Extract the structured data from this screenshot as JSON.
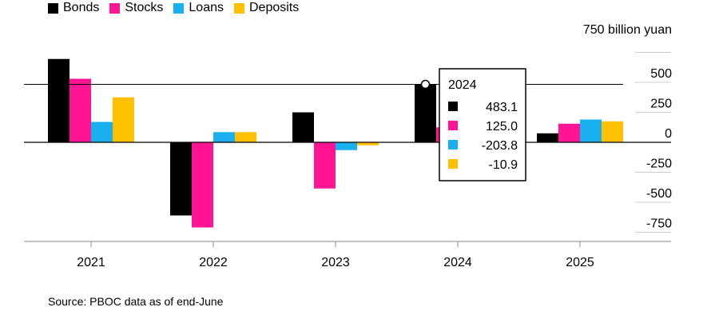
{
  "chart_data": {
    "type": "bar",
    "categories": [
      "2021",
      "2022",
      "2023",
      "2024",
      "2025"
    ],
    "series": [
      {
        "name": "Bonds",
        "color": "#000000",
        "values": [
          695,
          -610,
          250,
          483.1,
          75
        ]
      },
      {
        "name": "Stocks",
        "color": "#ff1493",
        "values": [
          530,
          -710,
          -385,
          125.0,
          155
        ]
      },
      {
        "name": "Loans",
        "color": "#1ab0f0",
        "values": [
          170,
          85,
          -65,
          -203.8,
          190
        ]
      },
      {
        "name": "Deposits",
        "color": "#ffc000",
        "values": [
          375,
          85,
          -25,
          -10.9,
          175
        ]
      }
    ],
    "unit_label": "750 billion yuan",
    "y_ticks": [
      {
        "value": 750,
        "label": ""
      },
      {
        "value": 500,
        "label": "500"
      },
      {
        "value": 250,
        "label": "250"
      },
      {
        "value": 0,
        "label": "0"
      },
      {
        "value": -250,
        "label": "-250"
      },
      {
        "value": -500,
        "label": "-500"
      },
      {
        "value": -750,
        "label": "-750"
      }
    ],
    "ylim": [
      -750,
      750
    ],
    "reference_line_value": 483.1,
    "tooltip": {
      "title": "2024",
      "rows": [
        {
          "color": "#000000",
          "value": "483.1"
        },
        {
          "color": "#ff1493",
          "value": "125.0"
        },
        {
          "color": "#1ab0f0",
          "value": "-203.8"
        },
        {
          "color": "#ffc000",
          "value": "-10.9"
        }
      ]
    },
    "legend_position": "top-left"
  },
  "source": "Source: PBOC data as of end-June"
}
